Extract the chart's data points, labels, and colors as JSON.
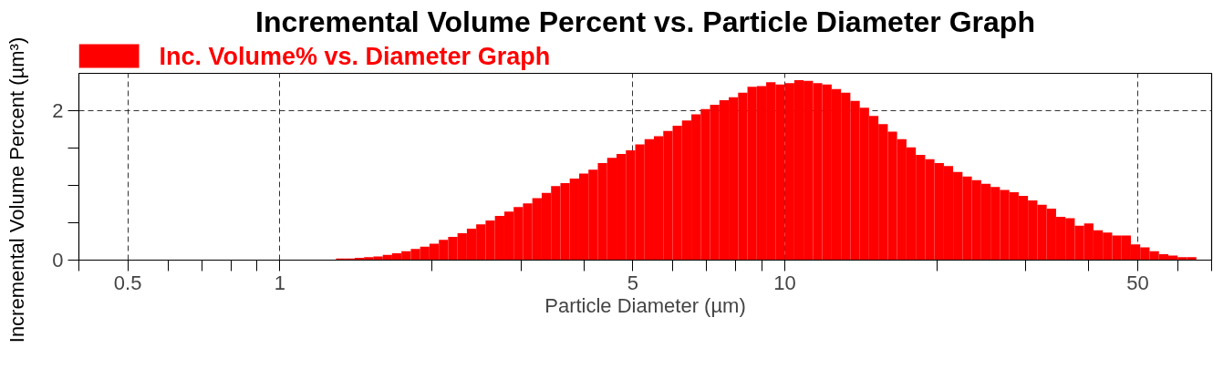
{
  "chart_data": {
    "type": "histogram",
    "title": "Incremental Volume Percent vs. Particle Diameter Graph",
    "xlabel": "Particle Diameter (µm)",
    "ylabel": "Incremental Volume Percent (µm³)",
    "log": "x",
    "xlim": [
      0.4,
      70
    ],
    "ylim": [
      0,
      2.5
    ],
    "xticks": [
      {
        "value": 0.4,
        "label": null
      },
      0.5,
      {
        "value": 0.6,
        "label": null
      },
      {
        "value": 0.7,
        "label": null
      },
      {
        "value": 0.8,
        "label": null
      },
      {
        "value": 0.9,
        "label": null
      },
      1,
      {
        "value": 2,
        "label": null
      },
      {
        "value": 3,
        "label": null
      },
      {
        "value": 4,
        "label": null
      },
      5,
      {
        "value": 6,
        "label": null
      },
      {
        "value": 7,
        "label": null
      },
      {
        "value": 8,
        "label": null
      },
      {
        "value": 9,
        "label": null
      },
      10,
      {
        "value": 20,
        "label": null
      },
      {
        "value": 30,
        "label": null
      },
      {
        "value": 40,
        "label": null
      },
      50,
      {
        "value": 60,
        "label": null
      },
      {
        "value": 70,
        "label": null
      }
    ],
    "yticks": [
      0,
      {
        "value": 0.5,
        "label": null
      },
      {
        "value": 1,
        "label": null
      },
      {
        "value": 1.5,
        "label": null
      },
      2
    ],
    "grid": true,
    "legend": "top left",
    "bins": [
      0.4844,
      0.5055,
      0.5275,
      0.5505,
      0.5745,
      0.5995,
      0.6256,
      0.6529,
      0.6813,
      0.711,
      0.7419,
      0.7743,
      0.808,
      0.8432,
      0.8799,
      0.9183,
      0.9583,
      1,
      1.044,
      1.089,
      1.137,
      1.186,
      1.238,
      1.292,
      1.348,
      1.407,
      1.468,
      1.532,
      1.599,
      1.668,
      1.741,
      1.817,
      1.896,
      1.978,
      2.065,
      2.154,
      2.248,
      2.346,
      2.448,
      2.555,
      2.666,
      2.783,
      2.904,
      3.03,
      3.162,
      3.3,
      3.444,
      3.594,
      3.75,
      3.914,
      4.084,
      4.262,
      4.448,
      4.642,
      4.844,
      5.055,
      5.275,
      5.505,
      5.745,
      5.995,
      6.256,
      6.529,
      6.813,
      7.11,
      7.419,
      7.743,
      8.08,
      8.432,
      8.799,
      9.183,
      9.583,
      10,
      10.44,
      10.89,
      11.37,
      11.86,
      12.38,
      12.92,
      13.48,
      14.07,
      14.68,
      15.32,
      15.99,
      16.68,
      17.41,
      18.17,
      18.96,
      19.78,
      20.65,
      21.54,
      22.48,
      23.46,
      24.48,
      25.55,
      26.66,
      27.83,
      29.04,
      30.3,
      31.62,
      33.0,
      34.44,
      35.94,
      37.5,
      39.14,
      40.84,
      42.62,
      44.48,
      46.42,
      48.44,
      50.55,
      52.75,
      55.05,
      57.45,
      59.95,
      62.56,
      65.29
    ],
    "series": [
      {
        "name": "Inc. Volume% vs. Diameter Graph",
        "color": "#ff0000",
        "values": [
          0,
          0,
          0,
          0,
          0,
          0,
          0,
          0,
          0,
          0,
          0,
          0,
          0,
          0,
          0,
          0,
          0,
          0,
          0,
          0,
          0,
          0,
          0,
          0.02,
          0.02,
          0.03,
          0.04,
          0.05,
          0.07,
          0.09,
          0.12,
          0.15,
          0.18,
          0.22,
          0.27,
          0.31,
          0.36,
          0.42,
          0.48,
          0.53,
          0.59,
          0.65,
          0.71,
          0.76,
          0.83,
          0.9,
          0.99,
          1.03,
          1.09,
          1.16,
          1.21,
          1.3,
          1.37,
          1.42,
          1.47,
          1.55,
          1.62,
          1.66,
          1.73,
          1.8,
          1.87,
          1.95,
          2.02,
          2.08,
          2.14,
          2.18,
          2.24,
          2.32,
          2.33,
          2.38,
          2.35,
          2.37,
          2.41,
          2.4,
          2.37,
          2.35,
          2.29,
          2.24,
          2.13,
          2.04,
          1.93,
          1.82,
          1.72,
          1.62,
          1.51,
          1.41,
          1.35,
          1.3,
          1.26,
          1.18,
          1.12,
          1.07,
          1.02,
          0.98,
          0.94,
          0.91,
          0.86,
          0.8,
          0.74,
          0.69,
          0.58,
          0.56,
          0.46,
          0.49,
          0.4,
          0.37,
          0.33,
          0.33,
          0.21,
          0.17,
          0.12,
          0.08,
          0.06,
          0.04,
          0.04
        ]
      }
    ]
  }
}
